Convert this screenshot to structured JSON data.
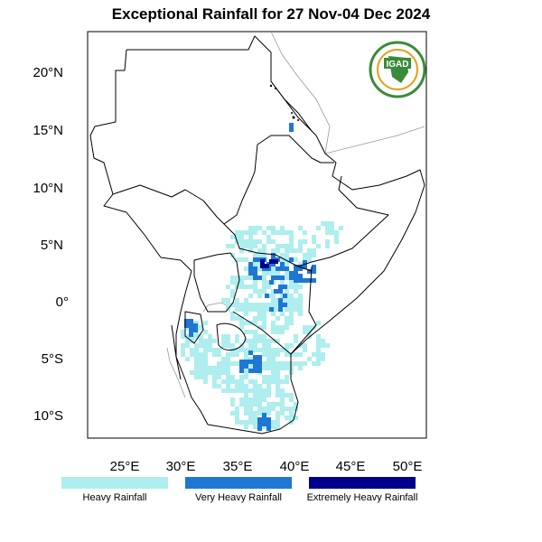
{
  "title": "Exceptional Rainfall for 27 Nov-04 Dec 2024",
  "logo": {
    "text": "IGAD",
    "colors": {
      "ring": "#3b8a3b",
      "accent": "#e2a11c",
      "text": "#ffffff"
    }
  },
  "axes": {
    "lat_labels": [
      "20°N",
      "15°N",
      "10°N",
      "5°N",
      "0°",
      "5°S",
      "10°S"
    ],
    "lon_labels": [
      "25°E",
      "30°E",
      "35°E",
      "40°E",
      "45°E",
      "50°E"
    ]
  },
  "legend": [
    {
      "label": "Heavy Rainfall",
      "color": "#aeeeee"
    },
    {
      "label": "Very Heavy Rainfall",
      "color": "#1f77d4"
    },
    {
      "label": "Extremely Heavy Rainfall",
      "color": "#00008b"
    }
  ],
  "chart_data": {
    "type": "heatmap",
    "lat_range": [
      -12,
      23.5
    ],
    "lon_range": [
      21.5,
      51.5
    ],
    "lat_ticks": [
      20,
      15,
      10,
      5,
      0,
      -5,
      -10
    ],
    "lon_ticks": [
      25,
      30,
      35,
      40,
      45,
      50
    ],
    "categories": [
      "Heavy Rainfall",
      "Very Heavy Rainfall",
      "Extremely Heavy Rainfall"
    ]
  }
}
